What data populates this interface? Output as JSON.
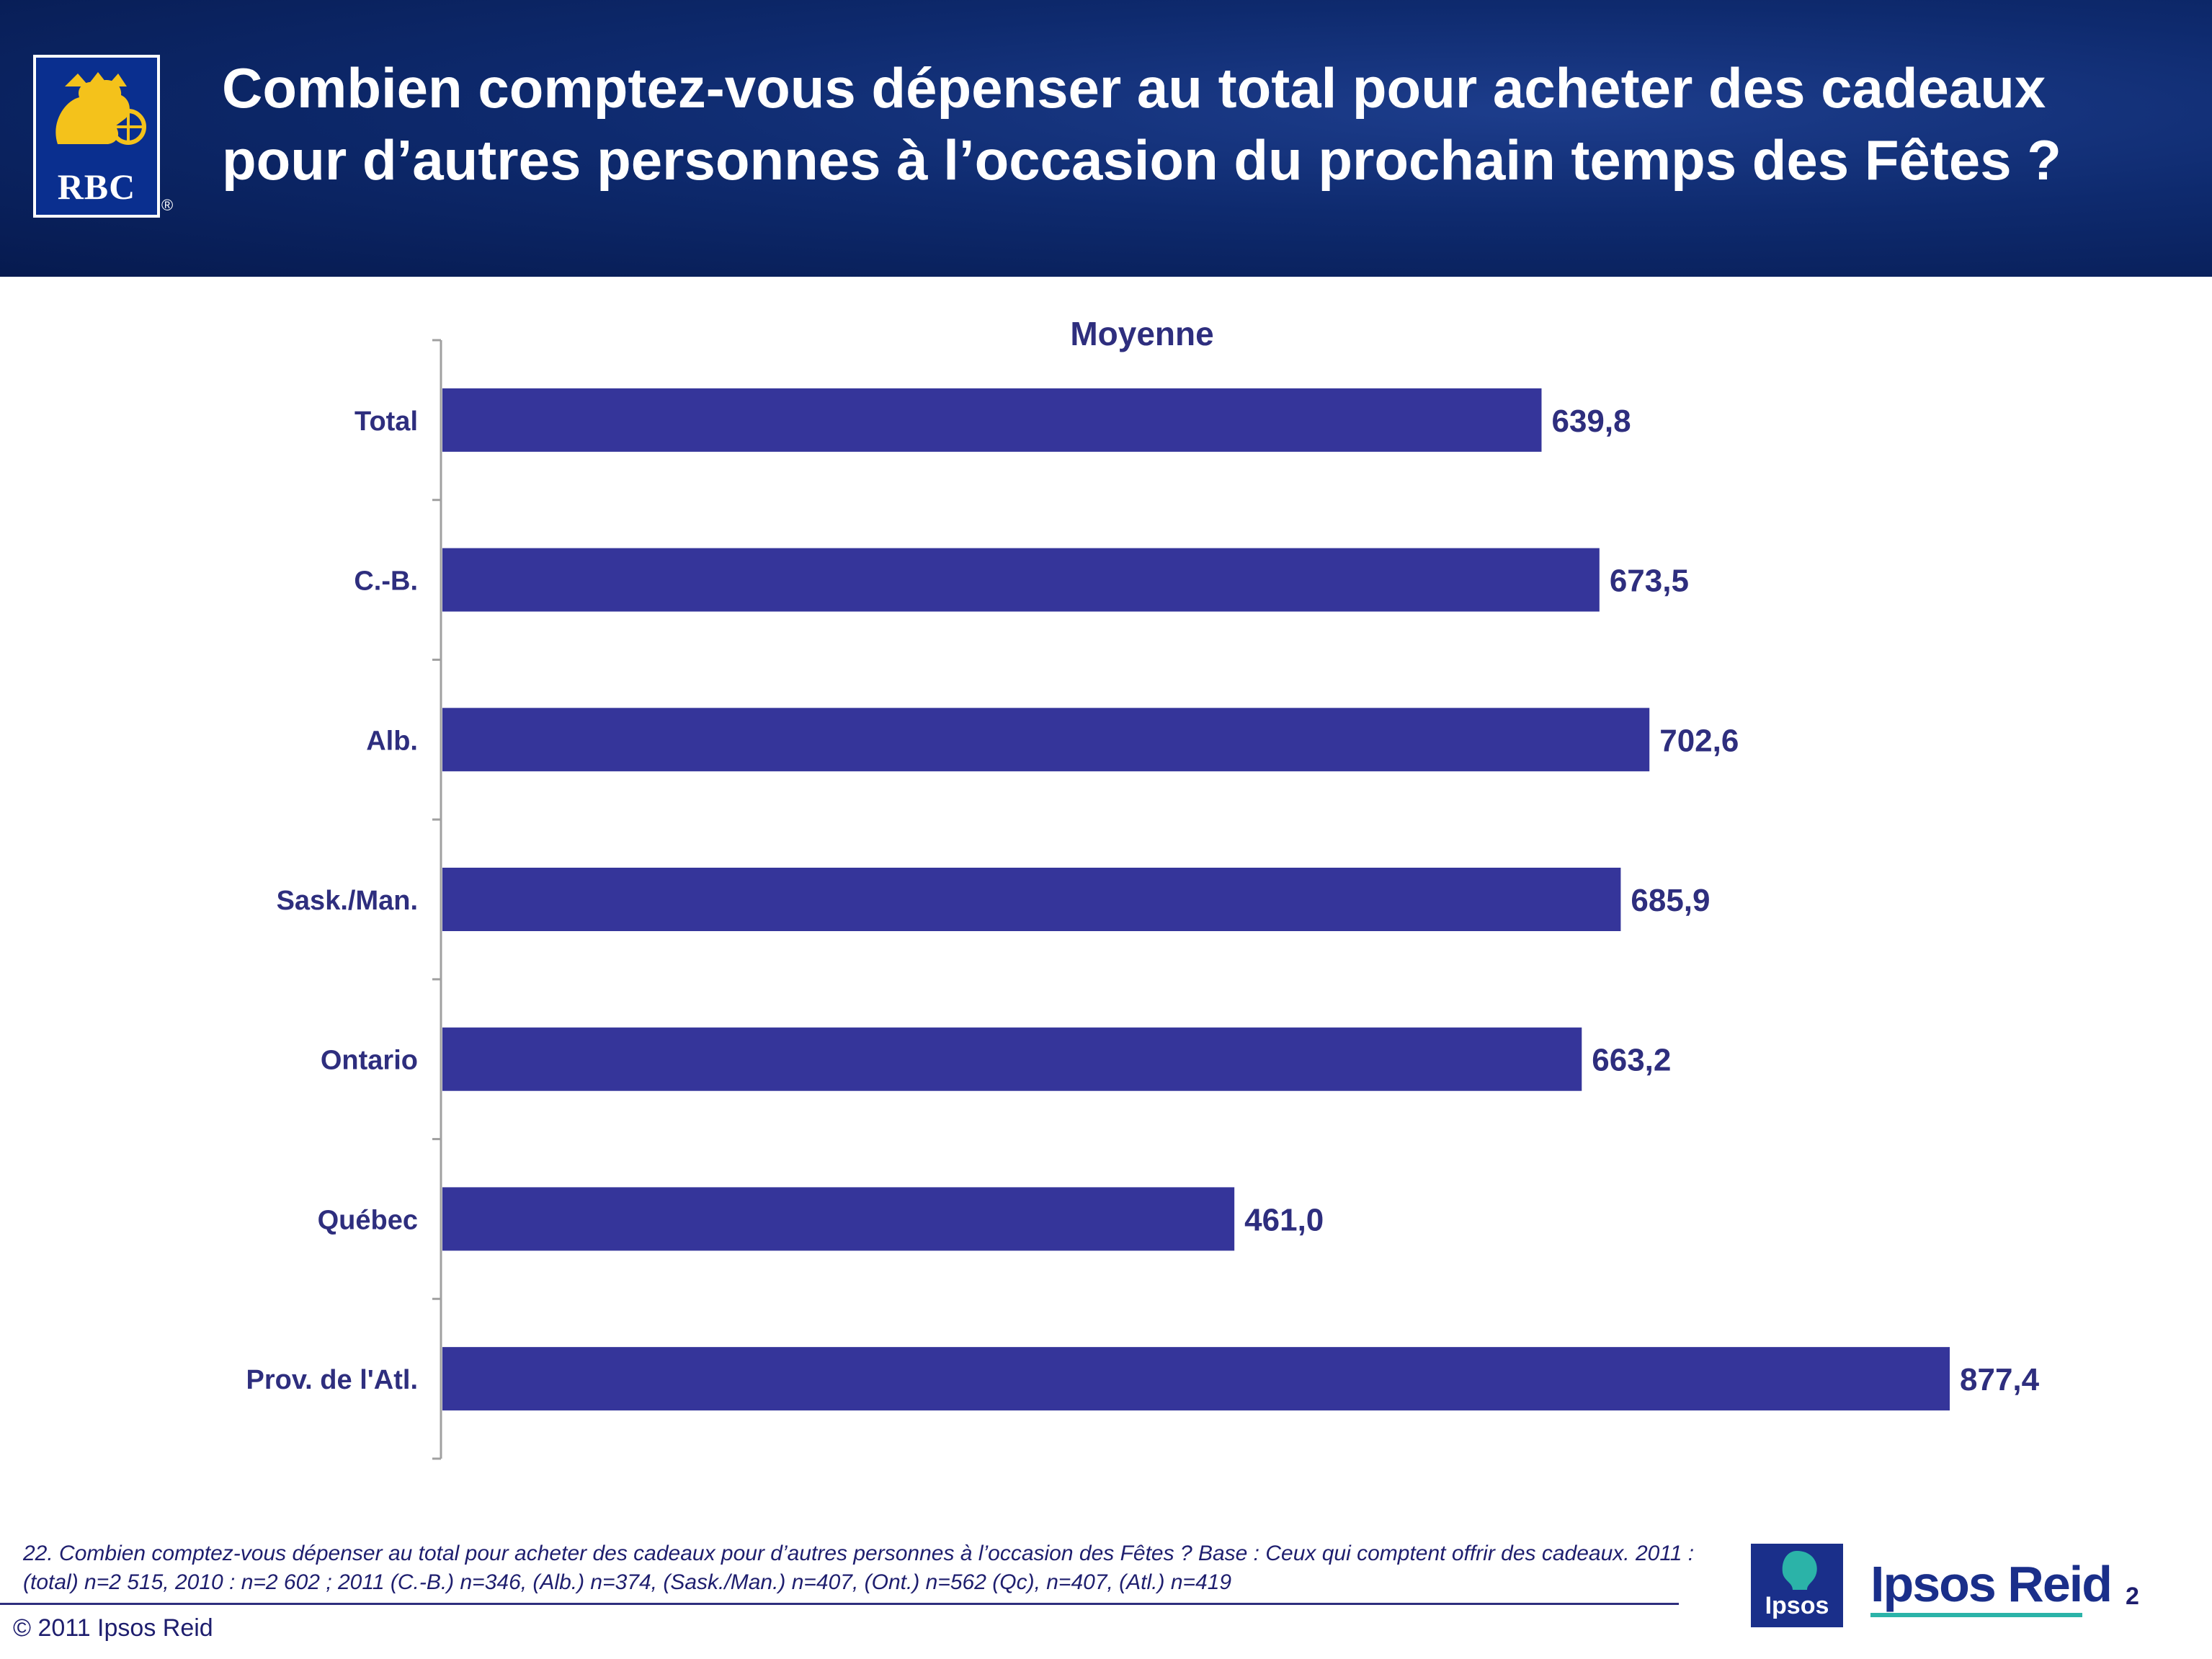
{
  "header": {
    "title": "Combien comptez-vous dépenser au total pour acheter des cadeaux pour d’autres personnes à l’occasion du prochain temps des Fêtes ?",
    "logo_text": "RBC",
    "logo_registered": "®"
  },
  "chart_data": {
    "type": "bar",
    "orientation": "horizontal",
    "title": "Moyenne",
    "categories": [
      "Total",
      "C.-B.",
      "Alb.",
      "Sask./Man.",
      "Ontario",
      "Québec",
      "Prov. de l'Atl."
    ],
    "values": [
      639.8,
      673.5,
      702.6,
      685.9,
      663.2,
      461.0,
      877.4
    ],
    "value_labels": [
      "639,8",
      "673,5",
      "702,6",
      "685,9",
      "663,2",
      "461,0",
      "877,4"
    ],
    "xlim": [
      0,
      877.4
    ],
    "bar_color": "#35359a",
    "grid": false,
    "legend": "none"
  },
  "footnote": "22. Combien comptez-vous dépenser au total pour acheter des cadeaux pour d’autres personnes à l’occasion des Fêtes ?  Base : Ceux qui comptent offrir des cadeaux. 2011 : (total) n=2 515, 2010 : n=2 602 ; 2011 (C.-B.) n=346, (Alb.) n=374, (Sask./Man.) n=407, (Ont.) n=562 (Qc), n=407, (Atl.) n=419",
  "footer": {
    "copyright": "© 2011 Ipsos Reid",
    "page_number": "2",
    "ipsos_logo_text": "Ipsos",
    "ipsos_reid_wordmark": "Ipsos Reid"
  },
  "colors": {
    "header_blue": "#0e2a6e",
    "accent_navy": "#2e2e7e",
    "ipsos_teal": "#2bb3a8"
  }
}
